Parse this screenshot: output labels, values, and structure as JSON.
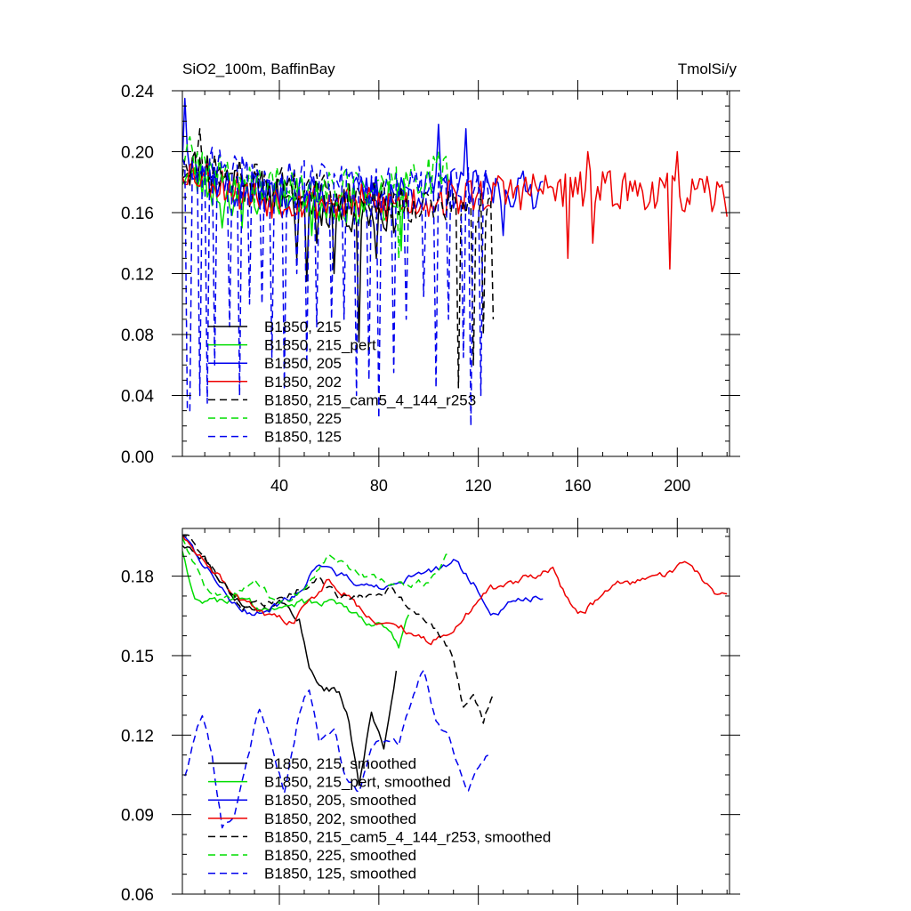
{
  "chart_data": [
    {
      "type": "line",
      "title_left": "SiO2_100m, BaffinBay",
      "title_right": "TmolSi/y",
      "xlabel": "",
      "ylabel": "",
      "xlim": [
        1,
        221
      ],
      "ylim": [
        0.0,
        0.24
      ],
      "xticks": [
        40,
        80,
        120,
        160,
        200
      ],
      "xtick_labels": [
        "40",
        "80",
        "120",
        "160",
        "200"
      ],
      "yticks": [
        0.0,
        0.04,
        0.08,
        0.12,
        0.16,
        0.2,
        0.24
      ],
      "ytick_labels": [
        "0.00",
        "0.04",
        "0.08",
        "0.12",
        "0.16",
        "0.20",
        "0.24"
      ],
      "legend_placement": "lower-left",
      "series": [
        {
          "name": "B1850, 215",
          "color": "#000000",
          "dash": false,
          "length": 87,
          "seed": 11,
          "kind": "raw",
          "anchors": [
            [
              1,
              0.19
            ],
            [
              10,
              0.19
            ],
            [
              30,
              0.175
            ],
            [
              45,
              0.17
            ],
            [
              55,
              0.165
            ],
            [
              70,
              0.16
            ],
            [
              87,
              0.16
            ]
          ],
          "noise": 0.014,
          "dips": [
            [
              47,
              0.13
            ],
            [
              51,
              0.115
            ],
            [
              55,
              0.14
            ],
            [
              62,
              0.12
            ],
            [
              72,
              0.075
            ],
            [
              79,
              0.13
            ]
          ]
        },
        {
          "name": "B1850, 215_pert",
          "color": "#00dd00",
          "dash": false,
          "length": 92,
          "seed": 23,
          "kind": "raw",
          "anchors": [
            [
              1,
              0.185
            ],
            [
              20,
              0.17
            ],
            [
              50,
              0.17
            ],
            [
              70,
              0.165
            ],
            [
              92,
              0.17
            ]
          ],
          "noise": 0.013,
          "dips": [
            [
              17,
              0.15
            ],
            [
              25,
              0.15
            ],
            [
              53,
              0.145
            ],
            [
              82,
              0.155
            ],
            [
              89,
              0.135
            ]
          ]
        },
        {
          "name": "B1850, 205",
          "color": "#0000ee",
          "dash": false,
          "length": 146,
          "seed": 37,
          "kind": "raw",
          "anchors": [
            [
              1,
              0.2
            ],
            [
              20,
              0.175
            ],
            [
              60,
              0.17
            ],
            [
              100,
              0.175
            ],
            [
              120,
              0.175
            ],
            [
              146,
              0.175
            ]
          ],
          "noise": 0.013,
          "dips": [
            [
              2,
              0.235
            ],
            [
              104,
              0.218
            ],
            [
              115,
              0.215
            ],
            [
              130,
              0.145
            ]
          ]
        },
        {
          "name": "B1850, 202",
          "color": "#ee0000",
          "dash": false,
          "length": 220,
          "seed": 53,
          "kind": "raw",
          "anchors": [
            [
              1,
              0.19
            ],
            [
              30,
              0.17
            ],
            [
              80,
              0.165
            ],
            [
              110,
              0.17
            ],
            [
              140,
              0.175
            ],
            [
              180,
              0.175
            ],
            [
              220,
              0.17
            ]
          ],
          "noise": 0.013,
          "dips": [
            [
              156,
              0.13
            ],
            [
              166,
              0.14
            ],
            [
              164,
              0.2
            ],
            [
              197,
              0.123
            ],
            [
              200,
              0.2
            ]
          ]
        },
        {
          "name": "B1850, 215_cam5_4_144_r253",
          "color": "#000000",
          "dash": true,
          "length": 126,
          "seed": 71,
          "kind": "raw",
          "anchors": [
            [
              1,
              0.19
            ],
            [
              30,
              0.18
            ],
            [
              70,
              0.17
            ],
            [
              100,
              0.165
            ],
            [
              126,
              0.16
            ]
          ],
          "noise": 0.013,
          "dips": [
            [
              8,
              0.215
            ],
            [
              112,
              0.045
            ],
            [
              118,
              0.06
            ],
            [
              122,
              0.08
            ],
            [
              126,
              0.09
            ]
          ]
        },
        {
          "name": "B1850, 225",
          "color": "#00dd00",
          "dash": true,
          "length": 108,
          "seed": 89,
          "kind": "raw",
          "anchors": [
            [
              1,
              0.2
            ],
            [
              20,
              0.18
            ],
            [
              60,
              0.175
            ],
            [
              90,
              0.18
            ],
            [
              108,
              0.185
            ]
          ],
          "noise": 0.014,
          "dips": [
            [
              88,
              0.13
            ],
            [
              104,
              0.2
            ]
          ]
        },
        {
          "name": "B1850, 125",
          "color": "#0000ee",
          "dash": true,
          "length": 125,
          "seed": 97,
          "kind": "raw",
          "anchors": [
            [
              1,
              0.2
            ],
            [
              30,
              0.19
            ],
            [
              80,
              0.18
            ],
            [
              125,
              0.18
            ]
          ],
          "noise": 0.01,
          "dips": [
            [
              3,
              0.03
            ],
            [
              4,
              0.03
            ],
            [
              8,
              0.04
            ],
            [
              11,
              0.035
            ],
            [
              14,
              0.06
            ],
            [
              20,
              0.085
            ],
            [
              24,
              0.04
            ],
            [
              28,
              0.1
            ],
            [
              33,
              0.1
            ],
            [
              37,
              0.065
            ],
            [
              42,
              0.045
            ],
            [
              47,
              0.12
            ],
            [
              51,
              0.06
            ],
            [
              55,
              0.085
            ],
            [
              61,
              0.09
            ],
            [
              66,
              0.09
            ],
            [
              71,
              0.04
            ],
            [
              76,
              0.05
            ],
            [
              80,
              0.025
            ],
            [
              86,
              0.055
            ],
            [
              91,
              0.09
            ],
            [
              98,
              0.105
            ],
            [
              103,
              0.045
            ],
            [
              108,
              0.09
            ],
            [
              114,
              0.065
            ],
            [
              117,
              0.02
            ],
            [
              121,
              0.04
            ]
          ]
        }
      ]
    },
    {
      "type": "line",
      "xlabel": "",
      "ylabel": "",
      "xlim": [
        1,
        221
      ],
      "ylim": [
        0.06,
        0.198
      ],
      "xticks": [
        40,
        80,
        120,
        160,
        200
      ],
      "yticks": [
        0.06,
        0.09,
        0.12,
        0.15,
        0.18
      ],
      "ytick_labels": [
        "0.06",
        "0.09",
        "0.12",
        "0.15",
        "0.18"
      ],
      "legend_placement": "lower-left",
      "series": [
        {
          "name": "B1850, 215, smoothed",
          "color": "#000000",
          "dash": false,
          "length": 87,
          "seed": 111,
          "kind": "smooth",
          "anchors": [
            [
              1,
              0.192
            ],
            [
              10,
              0.186
            ],
            [
              20,
              0.174
            ],
            [
              30,
              0.167
            ],
            [
              40,
              0.17
            ],
            [
              48,
              0.164
            ],
            [
              52,
              0.145
            ],
            [
              58,
              0.138
            ],
            [
              64,
              0.136
            ],
            [
              68,
              0.125
            ],
            [
              72,
              0.102
            ],
            [
              77,
              0.128
            ],
            [
              82,
              0.115
            ],
            [
              87,
              0.145
            ]
          ],
          "noise": 0.003
        },
        {
          "name": "B1850, 215_pert, smoothed",
          "color": "#00dd00",
          "dash": false,
          "length": 92,
          "seed": 123,
          "kind": "smooth",
          "anchors": [
            [
              1,
              0.19
            ],
            [
              6,
              0.172
            ],
            [
              14,
              0.17
            ],
            [
              25,
              0.172
            ],
            [
              35,
              0.166
            ],
            [
              45,
              0.17
            ],
            [
              55,
              0.17
            ],
            [
              65,
              0.17
            ],
            [
              75,
              0.163
            ],
            [
              82,
              0.161
            ],
            [
              88,
              0.153
            ],
            [
              92,
              0.165
            ]
          ],
          "noise": 0.003
        },
        {
          "name": "B1850, 205, smoothed",
          "color": "#0000ee",
          "dash": false,
          "length": 146,
          "seed": 137,
          "kind": "smooth",
          "anchors": [
            [
              1,
              0.196
            ],
            [
              10,
              0.184
            ],
            [
              20,
              0.172
            ],
            [
              30,
              0.165
            ],
            [
              45,
              0.172
            ],
            [
              55,
              0.183
            ],
            [
              65,
              0.18
            ],
            [
              80,
              0.175
            ],
            [
              95,
              0.18
            ],
            [
              110,
              0.185
            ],
            [
              120,
              0.175
            ],
            [
              125,
              0.166
            ],
            [
              135,
              0.17
            ],
            [
              146,
              0.173
            ]
          ],
          "noise": 0.003
        },
        {
          "name": "B1850, 202, smoothed",
          "color": "#ee0000",
          "dash": false,
          "length": 220,
          "seed": 153,
          "kind": "smooth",
          "anchors": [
            [
              1,
              0.196
            ],
            [
              10,
              0.186
            ],
            [
              25,
              0.17
            ],
            [
              35,
              0.165
            ],
            [
              45,
              0.162
            ],
            [
              52,
              0.17
            ],
            [
              60,
              0.179
            ],
            [
              70,
              0.17
            ],
            [
              80,
              0.163
            ],
            [
              90,
              0.16
            ],
            [
              100,
              0.155
            ],
            [
              108,
              0.158
            ],
            [
              115,
              0.166
            ],
            [
              125,
              0.175
            ],
            [
              140,
              0.18
            ],
            [
              150,
              0.182
            ],
            [
              160,
              0.165
            ],
            [
              175,
              0.177
            ],
            [
              190,
              0.178
            ],
            [
              205,
              0.185
            ],
            [
              215,
              0.173
            ],
            [
              220,
              0.173
            ]
          ],
          "noise": 0.003
        },
        {
          "name": "B1850, 215_cam5_4_144_r253, smoothed",
          "color": "#000000",
          "dash": true,
          "length": 126,
          "seed": 171,
          "kind": "smooth",
          "anchors": [
            [
              1,
              0.196
            ],
            [
              8,
              0.19
            ],
            [
              15,
              0.18
            ],
            [
              25,
              0.168
            ],
            [
              35,
              0.17
            ],
            [
              45,
              0.173
            ],
            [
              55,
              0.18
            ],
            [
              65,
              0.172
            ],
            [
              75,
              0.172
            ],
            [
              85,
              0.175
            ],
            [
              95,
              0.165
            ],
            [
              105,
              0.158
            ],
            [
              110,
              0.15
            ],
            [
              114,
              0.13
            ],
            [
              118,
              0.135
            ],
            [
              122,
              0.125
            ],
            [
              126,
              0.135
            ]
          ],
          "noise": 0.003
        },
        {
          "name": "B1850, 225, smoothed",
          "color": "#00dd00",
          "dash": true,
          "length": 108,
          "seed": 189,
          "kind": "smooth",
          "anchors": [
            [
              1,
              0.195
            ],
            [
              10,
              0.175
            ],
            [
              20,
              0.172
            ],
            [
              30,
              0.178
            ],
            [
              40,
              0.17
            ],
            [
              50,
              0.175
            ],
            [
              60,
              0.188
            ],
            [
              70,
              0.182
            ],
            [
              80,
              0.178
            ],
            [
              90,
              0.176
            ],
            [
              100,
              0.178
            ],
            [
              108,
              0.188
            ]
          ],
          "noise": 0.003
        },
        {
          "name": "B1850, 125, smoothed",
          "color": "#0000ee",
          "dash": true,
          "length": 125,
          "seed": 197,
          "kind": "smooth",
          "anchors": [
            [
              2,
              0.105
            ],
            [
              5,
              0.115
            ],
            [
              9,
              0.128
            ],
            [
              13,
              0.112
            ],
            [
              17,
              0.085
            ],
            [
              22,
              0.09
            ],
            [
              27,
              0.112
            ],
            [
              32,
              0.13
            ],
            [
              36,
              0.12
            ],
            [
              42,
              0.098
            ],
            [
              48,
              0.128
            ],
            [
              52,
              0.138
            ],
            [
              56,
              0.118
            ],
            [
              62,
              0.122
            ],
            [
              67,
              0.103
            ],
            [
              72,
              0.098
            ],
            [
              77,
              0.115
            ],
            [
              83,
              0.12
            ],
            [
              88,
              0.118
            ],
            [
              93,
              0.132
            ],
            [
              98,
              0.145
            ],
            [
              103,
              0.125
            ],
            [
              108,
              0.12
            ],
            [
              112,
              0.11
            ],
            [
              116,
              0.1
            ],
            [
              120,
              0.108
            ],
            [
              125,
              0.115
            ]
          ],
          "noise": 0.003
        }
      ]
    }
  ]
}
